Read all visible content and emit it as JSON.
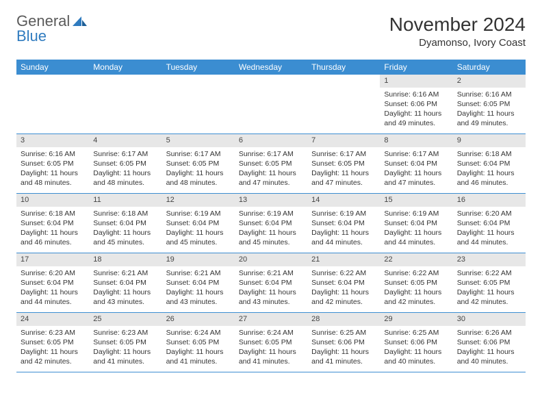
{
  "logo": {
    "line1": "General",
    "line2": "Blue"
  },
  "title": "November 2024",
  "location": "Dyamonso, Ivory Coast",
  "colors": {
    "header_bg": "#3b8dd1",
    "header_text": "#ffffff",
    "daynum_bg": "#e7e7e7",
    "body_text": "#333333",
    "border": "#3b8dd1",
    "logo_gray": "#5a5a5a",
    "logo_blue": "#2f7bbf"
  },
  "day_headers": [
    "Sunday",
    "Monday",
    "Tuesday",
    "Wednesday",
    "Thursday",
    "Friday",
    "Saturday"
  ],
  "weeks": [
    [
      null,
      null,
      null,
      null,
      null,
      {
        "n": "1",
        "sunrise": "6:16 AM",
        "sunset": "6:06 PM",
        "daylight": "11 hours and 49 minutes."
      },
      {
        "n": "2",
        "sunrise": "6:16 AM",
        "sunset": "6:05 PM",
        "daylight": "11 hours and 49 minutes."
      }
    ],
    [
      {
        "n": "3",
        "sunrise": "6:16 AM",
        "sunset": "6:05 PM",
        "daylight": "11 hours and 48 minutes."
      },
      {
        "n": "4",
        "sunrise": "6:17 AM",
        "sunset": "6:05 PM",
        "daylight": "11 hours and 48 minutes."
      },
      {
        "n": "5",
        "sunrise": "6:17 AM",
        "sunset": "6:05 PM",
        "daylight": "11 hours and 48 minutes."
      },
      {
        "n": "6",
        "sunrise": "6:17 AM",
        "sunset": "6:05 PM",
        "daylight": "11 hours and 47 minutes."
      },
      {
        "n": "7",
        "sunrise": "6:17 AM",
        "sunset": "6:05 PM",
        "daylight": "11 hours and 47 minutes."
      },
      {
        "n": "8",
        "sunrise": "6:17 AM",
        "sunset": "6:04 PM",
        "daylight": "11 hours and 47 minutes."
      },
      {
        "n": "9",
        "sunrise": "6:18 AM",
        "sunset": "6:04 PM",
        "daylight": "11 hours and 46 minutes."
      }
    ],
    [
      {
        "n": "10",
        "sunrise": "6:18 AM",
        "sunset": "6:04 PM",
        "daylight": "11 hours and 46 minutes."
      },
      {
        "n": "11",
        "sunrise": "6:18 AM",
        "sunset": "6:04 PM",
        "daylight": "11 hours and 45 minutes."
      },
      {
        "n": "12",
        "sunrise": "6:19 AM",
        "sunset": "6:04 PM",
        "daylight": "11 hours and 45 minutes."
      },
      {
        "n": "13",
        "sunrise": "6:19 AM",
        "sunset": "6:04 PM",
        "daylight": "11 hours and 45 minutes."
      },
      {
        "n": "14",
        "sunrise": "6:19 AM",
        "sunset": "6:04 PM",
        "daylight": "11 hours and 44 minutes."
      },
      {
        "n": "15",
        "sunrise": "6:19 AM",
        "sunset": "6:04 PM",
        "daylight": "11 hours and 44 minutes."
      },
      {
        "n": "16",
        "sunrise": "6:20 AM",
        "sunset": "6:04 PM",
        "daylight": "11 hours and 44 minutes."
      }
    ],
    [
      {
        "n": "17",
        "sunrise": "6:20 AM",
        "sunset": "6:04 PM",
        "daylight": "11 hours and 44 minutes."
      },
      {
        "n": "18",
        "sunrise": "6:21 AM",
        "sunset": "6:04 PM",
        "daylight": "11 hours and 43 minutes."
      },
      {
        "n": "19",
        "sunrise": "6:21 AM",
        "sunset": "6:04 PM",
        "daylight": "11 hours and 43 minutes."
      },
      {
        "n": "20",
        "sunrise": "6:21 AM",
        "sunset": "6:04 PM",
        "daylight": "11 hours and 43 minutes."
      },
      {
        "n": "21",
        "sunrise": "6:22 AM",
        "sunset": "6:04 PM",
        "daylight": "11 hours and 42 minutes."
      },
      {
        "n": "22",
        "sunrise": "6:22 AM",
        "sunset": "6:05 PM",
        "daylight": "11 hours and 42 minutes."
      },
      {
        "n": "23",
        "sunrise": "6:22 AM",
        "sunset": "6:05 PM",
        "daylight": "11 hours and 42 minutes."
      }
    ],
    [
      {
        "n": "24",
        "sunrise": "6:23 AM",
        "sunset": "6:05 PM",
        "daylight": "11 hours and 42 minutes."
      },
      {
        "n": "25",
        "sunrise": "6:23 AM",
        "sunset": "6:05 PM",
        "daylight": "11 hours and 41 minutes."
      },
      {
        "n": "26",
        "sunrise": "6:24 AM",
        "sunset": "6:05 PM",
        "daylight": "11 hours and 41 minutes."
      },
      {
        "n": "27",
        "sunrise": "6:24 AM",
        "sunset": "6:05 PM",
        "daylight": "11 hours and 41 minutes."
      },
      {
        "n": "28",
        "sunrise": "6:25 AM",
        "sunset": "6:06 PM",
        "daylight": "11 hours and 41 minutes."
      },
      {
        "n": "29",
        "sunrise": "6:25 AM",
        "sunset": "6:06 PM",
        "daylight": "11 hours and 40 minutes."
      },
      {
        "n": "30",
        "sunrise": "6:26 AM",
        "sunset": "6:06 PM",
        "daylight": "11 hours and 40 minutes."
      }
    ]
  ],
  "labels": {
    "sunrise": "Sunrise: ",
    "sunset": "Sunset: ",
    "daylight": "Daylight: "
  }
}
